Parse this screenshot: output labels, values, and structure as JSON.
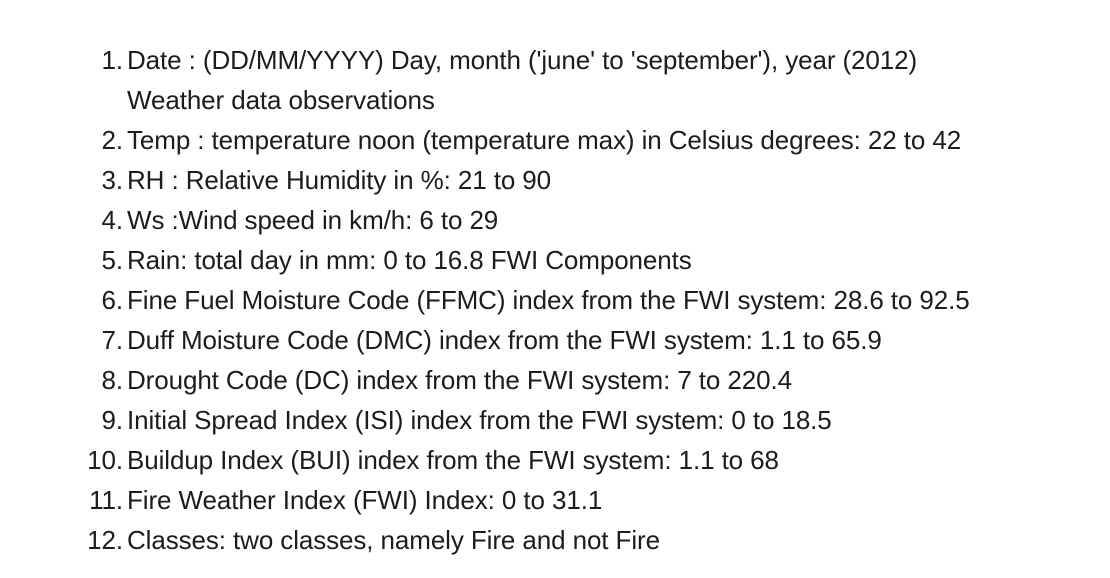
{
  "list": {
    "items": [
      {
        "number": "1.",
        "lines": [
          "Date : (DD/MM/YYYY) Day, month ('june' to 'september'), year (2012)",
          "Weather data observations"
        ]
      },
      {
        "number": "2.",
        "lines": [
          "Temp : temperature noon (temperature max) in Celsius degrees: 22 to 42"
        ]
      },
      {
        "number": "3.",
        "lines": [
          "RH : Relative Humidity in %: 21 to 90"
        ]
      },
      {
        "number": "4.",
        "lines": [
          "Ws :Wind speed in km/h: 6 to 29"
        ]
      },
      {
        "number": "5.",
        "lines": [
          "Rain: total day in mm: 0 to 16.8 FWI Components"
        ]
      },
      {
        "number": "6.",
        "lines": [
          "Fine Fuel Moisture Code (FFMC) index from the FWI system: 28.6 to 92.5"
        ]
      },
      {
        "number": "7.",
        "lines": [
          "Duff Moisture Code (DMC) index from the FWI system: 1.1 to 65.9"
        ]
      },
      {
        "number": "8.",
        "lines": [
          "Drought Code (DC) index from the FWI system: 7 to 220.4"
        ]
      },
      {
        "number": "9.",
        "lines": [
          "Initial Spread Index (ISI) index from the FWI system: 0 to 18.5"
        ]
      },
      {
        "number": "10.",
        "lines": [
          "Buildup Index (BUI) index from the FWI system: 1.1 to 68"
        ]
      },
      {
        "number": "11.",
        "lines": [
          "Fire Weather Index (FWI) Index: 0 to 31.1"
        ]
      },
      {
        "number": "12.",
        "lines": [
          "Classes: two classes, namely Fire and not Fire"
        ]
      }
    ]
  }
}
